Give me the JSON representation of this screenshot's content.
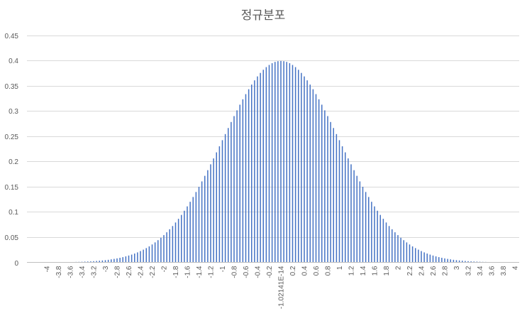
{
  "chart_data": {
    "type": "bar",
    "title": "정규분포",
    "xlabel": "",
    "ylabel": "",
    "ylim": [
      0,
      0.45
    ],
    "y_ticks": [
      0,
      0.05,
      0.1,
      0.15,
      0.2,
      0.25,
      0.3,
      0.35,
      0.4,
      0.45
    ],
    "y_tick_labels": [
      "0",
      "0.05",
      "0.1",
      "0.15",
      "0.2",
      "0.25",
      "0.3",
      "0.35",
      "0.4",
      "0.45"
    ],
    "x_tick_labels": [
      "-4",
      "-3.8",
      "-3.6",
      "-3.4",
      "-3.2",
      "-3",
      "-2.8",
      "-2.6",
      "-2.4",
      "-2.2",
      "-2",
      "-1.8",
      "-1.6",
      "-1.4",
      "-1.2",
      "-1",
      "-0.8",
      "-0.6",
      "-0.4",
      "-0.2",
      "-1.02141E-14",
      "0.2",
      "0.4",
      "0.6",
      "0.8",
      "1",
      "1.2",
      "1.4",
      "1.6",
      "1.8",
      "2",
      "2.2",
      "2.4",
      "2.6",
      "2.8",
      "3",
      "3.2",
      "3.4",
      "3.6",
      "3.8",
      "4"
    ],
    "x": [
      -4.0,
      -3.95,
      -3.9,
      -3.85,
      -3.8,
      -3.75,
      -3.7,
      -3.65,
      -3.6,
      -3.55,
      -3.5,
      -3.45,
      -3.4,
      -3.35,
      -3.3,
      -3.25,
      -3.2,
      -3.15,
      -3.1,
      -3.05,
      -3.0,
      -2.95,
      -2.9,
      -2.85,
      -2.8,
      -2.75,
      -2.7,
      -2.65,
      -2.6,
      -2.55,
      -2.5,
      -2.45,
      -2.4,
      -2.35,
      -2.3,
      -2.25,
      -2.2,
      -2.15,
      -2.1,
      -2.05,
      -2.0,
      -1.95,
      -1.9,
      -1.85,
      -1.8,
      -1.75,
      -1.7,
      -1.65,
      -1.6,
      -1.55,
      -1.5,
      -1.45,
      -1.4,
      -1.35,
      -1.3,
      -1.25,
      -1.2,
      -1.15,
      -1.1,
      -1.05,
      -1.0,
      -0.95,
      -0.9,
      -0.85,
      -0.8,
      -0.75,
      -0.7,
      -0.65,
      -0.6,
      -0.55,
      -0.5,
      -0.45,
      -0.4,
      -0.35,
      -0.3,
      -0.25,
      -0.2,
      -0.15,
      -0.1,
      -0.05,
      0.0,
      0.05,
      0.1,
      0.15,
      0.2,
      0.25,
      0.3,
      0.35,
      0.4,
      0.45,
      0.5,
      0.55,
      0.6,
      0.65,
      0.7,
      0.75,
      0.8,
      0.85,
      0.9,
      0.95,
      1.0,
      1.05,
      1.1,
      1.15,
      1.2,
      1.25,
      1.3,
      1.35,
      1.4,
      1.45,
      1.5,
      1.55,
      1.6,
      1.65,
      1.7,
      1.75,
      1.8,
      1.85,
      1.9,
      1.95,
      2.0,
      2.05,
      2.1,
      2.15,
      2.2,
      2.25,
      2.3,
      2.35,
      2.4,
      2.45,
      2.5,
      2.55,
      2.6,
      2.65,
      2.7,
      2.75,
      2.8,
      2.85,
      2.9,
      2.95,
      3.0,
      3.05,
      3.1,
      3.15,
      3.2,
      3.25,
      3.3,
      3.35,
      3.4,
      3.45,
      3.5,
      3.55,
      3.6,
      3.65,
      3.7,
      3.75,
      3.8,
      3.85,
      3.9,
      3.95,
      4.0
    ],
    "values": [
      0.0001,
      0.0002,
      0.0002,
      0.0002,
      0.0003,
      0.0004,
      0.0004,
      0.0005,
      0.0006,
      0.0007,
      0.0009,
      0.001,
      0.0012,
      0.0015,
      0.0017,
      0.002,
      0.0024,
      0.0028,
      0.0033,
      0.0038,
      0.0044,
      0.0051,
      0.006,
      0.0069,
      0.0079,
      0.0091,
      0.0104,
      0.0119,
      0.0136,
      0.0154,
      0.0175,
      0.0198,
      0.0224,
      0.0252,
      0.0283,
      0.0317,
      0.0355,
      0.0396,
      0.044,
      0.0488,
      0.054,
      0.0596,
      0.0656,
      0.072,
      0.079,
      0.0863,
      0.094,
      0.1023,
      0.1109,
      0.12,
      0.1295,
      0.1394,
      0.1497,
      0.1604,
      0.1714,
      0.1826,
      0.1942,
      0.2059,
      0.2179,
      0.2299,
      0.242,
      0.2541,
      0.2661,
      0.278,
      0.2897,
      0.3011,
      0.3123,
      0.323,
      0.3332,
      0.3429,
      0.3521,
      0.3605,
      0.3683,
      0.3752,
      0.3814,
      0.3867,
      0.391,
      0.3945,
      0.397,
      0.3984,
      0.3989,
      0.3984,
      0.397,
      0.3945,
      0.391,
      0.3867,
      0.3814,
      0.3752,
      0.3683,
      0.3605,
      0.3521,
      0.3429,
      0.3332,
      0.323,
      0.3123,
      0.3011,
      0.2897,
      0.278,
      0.2661,
      0.2541,
      0.242,
      0.2299,
      0.2179,
      0.2059,
      0.1942,
      0.1826,
      0.1714,
      0.1604,
      0.1497,
      0.1394,
      0.1295,
      0.12,
      0.1109,
      0.1023,
      0.094,
      0.0863,
      0.079,
      0.072,
      0.0656,
      0.0596,
      0.054,
      0.0488,
      0.044,
      0.0396,
      0.0355,
      0.0317,
      0.0283,
      0.0252,
      0.0224,
      0.0198,
      0.0175,
      0.0154,
      0.0136,
      0.0119,
      0.0104,
      0.0091,
      0.0079,
      0.0069,
      0.006,
      0.0051,
      0.0044,
      0.0038,
      0.0033,
      0.0028,
      0.0024,
      0.002,
      0.0017,
      0.0015,
      0.0012,
      0.001,
      0.0009,
      0.0007,
      0.0006,
      0.0005,
      0.0004,
      0.0004,
      0.0003,
      0.0002,
      0.0002,
      0.0002,
      0.0001
    ],
    "bar_color": "#4472C4",
    "grid": true,
    "gridline_color": "#D9D9D9",
    "axis_line_color": "#BFBFBF",
    "text_color": "#595959",
    "legend": "none"
  }
}
